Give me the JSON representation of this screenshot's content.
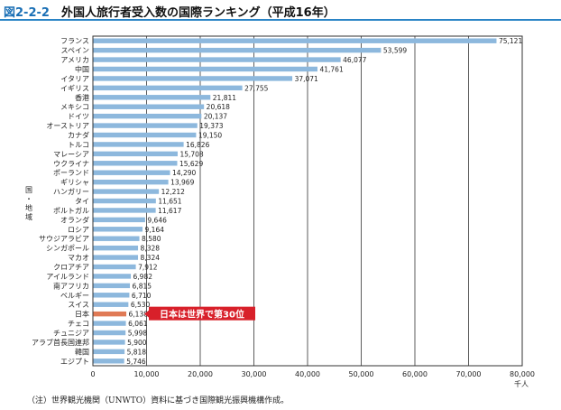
{
  "header": {
    "figure_number": "図2-2-2",
    "title": "外国人旅行者受入数の国際ランキング（平成16年）"
  },
  "note": "（注）世界観光機関（UNWTO）資料に基づき国際観光振興機構作成。",
  "colors": {
    "bar": "#8db8dd",
    "bar_highlight": "#e07a55",
    "callout": "#d8202a",
    "accent": "#1a6fb5"
  },
  "chart_data": {
    "type": "bar",
    "orientation": "horizontal",
    "categories": [
      "フランス",
      "スペイン",
      "アメリカ",
      "中国",
      "イタリア",
      "イギリス",
      "香港",
      "メキシコ",
      "ドイツ",
      "オーストリア",
      "カナダ",
      "トルコ",
      "マレーシア",
      "ウクライナ",
      "ポーランド",
      "ギリシャ",
      "ハンガリー",
      "タイ",
      "ポルトガル",
      "オランダ",
      "ロシア",
      "サウジアラビア",
      "シンガポール",
      "マカオ",
      "クロアチア",
      "アイルランド",
      "南アフリカ",
      "ベルギー",
      "スイス",
      "日本",
      "チェコ",
      "チュニジア",
      "アラブ首長国連邦",
      "韓国",
      "エジプト"
    ],
    "values": [
      75121,
      53599,
      46077,
      41761,
      37071,
      27755,
      21811,
      20618,
      20137,
      19373,
      19150,
      16826,
      15708,
      15629,
      14290,
      13969,
      12212,
      11651,
      11617,
      9646,
      9164,
      8580,
      8328,
      8324,
      7912,
      6982,
      6815,
      6710,
      6530,
      6138,
      6061,
      5998,
      5900,
      5818,
      5746
    ],
    "value_labels": [
      "75,121",
      "53,599",
      "46,077",
      "41,761",
      "37,071",
      "27,755",
      "21,811",
      "20,618",
      "20,137",
      "19,373",
      "19,150",
      "16,826",
      "15,708",
      "15,629",
      "14,290",
      "13,969",
      "12,212",
      "11,651",
      "11,617",
      "9,646",
      "9,164",
      "8,580",
      "8,328",
      "8,324",
      "7,912",
      "6,982",
      "6,815",
      "6,710",
      "6,530",
      "6,138",
      "6,061",
      "5,998",
      "5,900",
      "5,818",
      "5,746"
    ],
    "highlight": "日本",
    "annotation": "日本は世界で第30位",
    "ylabel": "国・地域",
    "xlabel_unit": "千人",
    "xlim": [
      0,
      80000
    ],
    "xticks": [
      0,
      10000,
      20000,
      30000,
      40000,
      50000,
      60000,
      70000,
      80000
    ],
    "xtick_labels": [
      "0",
      "10,000",
      "20,000",
      "30,000",
      "40,000",
      "50,000",
      "60,000",
      "70,000",
      "80,000"
    ],
    "grid": true
  }
}
